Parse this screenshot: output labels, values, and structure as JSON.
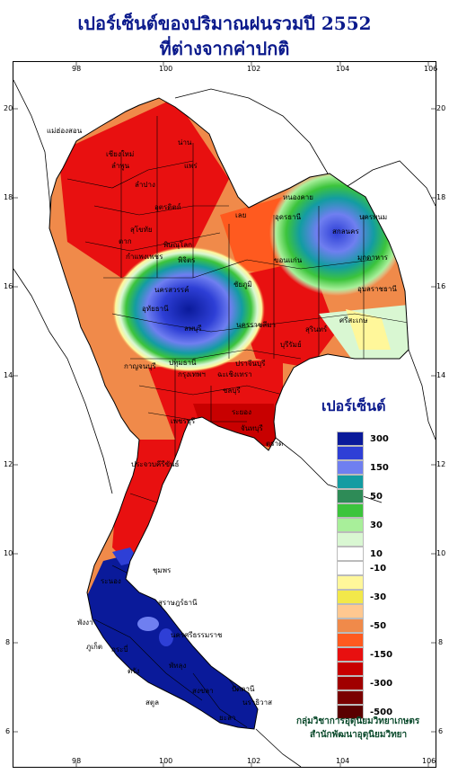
{
  "title_line1": "เปอร์เซ็นต์ของปริมาณฝนรวมปี 2552",
  "title_line2": "ที่ต่างจากค่าปกติ",
  "lon_ticks": [
    "98",
    "100",
    "102",
    "104",
    "106"
  ],
  "lat_ticks": [
    "20",
    "18",
    "16",
    "14",
    "12",
    "10",
    "8",
    "6"
  ],
  "legend": {
    "title": "เปอร์เซ็นต์",
    "items": [
      {
        "color": "#0a1a9a",
        "label": "300"
      },
      {
        "color": "#2e3fd6",
        "label": ""
      },
      {
        "color": "#6f7ff0",
        "label": "150"
      },
      {
        "color": "#139ca2",
        "label": ""
      },
      {
        "color": "#2e8b57",
        "label": "50"
      },
      {
        "color": "#3cc43c",
        "label": ""
      },
      {
        "color": "#a8ef9a",
        "label": "30"
      },
      {
        "color": "#d9f7d2",
        "label": ""
      },
      {
        "color": "#ffffff",
        "label": "10"
      },
      {
        "color": "#ffffff",
        "label": "-10"
      },
      {
        "color": "#fff79a",
        "label": ""
      },
      {
        "color": "#f2e84a",
        "label": "-30"
      },
      {
        "color": "#ffc890",
        "label": ""
      },
      {
        "color": "#f08a4a",
        "label": "-50"
      },
      {
        "color": "#ff5a1f",
        "label": ""
      },
      {
        "color": "#e81010",
        "label": "-150"
      },
      {
        "color": "#c80000",
        "label": ""
      },
      {
        "color": "#a00000",
        "label": "-300"
      },
      {
        "color": "#7a0000",
        "label": ""
      },
      {
        "color": "#5a0000",
        "label": "-500"
      }
    ]
  },
  "cities": [
    "แม่ฮ่องสอน",
    "เชียงใหม่",
    "ลำพูน",
    "น่าน",
    "แพร่",
    "ลำปาง",
    "อุตรดิตถ์",
    "สุโขทัย",
    "ตาก",
    "พิษณุโลก",
    "กำแพงเพชร",
    "พิจิตร",
    "เลย",
    "หนองคาย",
    "อุดรธานี",
    "สกลนคร",
    "นครพนม",
    "มุกดาหาร",
    "ขอนแก่น",
    "นครสวรรค์",
    "ชัยภูมิ",
    "อุทัยธานี",
    "ลพบุรี",
    "นครราชสีมา",
    "บุรีรัมย์",
    "สุรินทร์",
    "อุบลราชธานี",
    "ศรีสะเกษ",
    "กาญจนบุรี",
    "ปทุมธานี",
    "กรุงเทพฯ",
    "ฉะเชิงเทรา",
    "ปราจีนบุรี",
    "ชลบุรี",
    "ระยอง",
    "จันทบุรี",
    "ตราด",
    "เพชรบุรี",
    "ประจวบคีรีขันธ์",
    "ชุมพร",
    "ระนอง",
    "สุราษฎร์ธานี",
    "นครศรีธรรมราช",
    "พังงา",
    "ภูเก็ต",
    "กระบี่",
    "ตรัง",
    "พัทลุง",
    "สงขลา",
    "สตูล",
    "ปัตตานี",
    "ยะลา",
    "นราธิวาส"
  ],
  "credit_line1": "กลุ่มวิชาการอุตุนิยมวิทยาเกษตร",
  "credit_line2": "สำนักพัฒนาอุตุนิยมวิทยา"
}
